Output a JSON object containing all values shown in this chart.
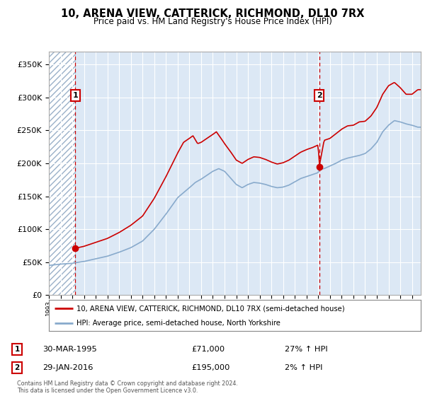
{
  "title": "10, ARENA VIEW, CATTERICK, RICHMOND, DL10 7RX",
  "subtitle": "Price paid vs. HM Land Registry's House Price Index (HPI)",
  "legend_line1": "10, ARENA VIEW, CATTERICK, RICHMOND, DL10 7RX (semi-detached house)",
  "legend_line2": "HPI: Average price, semi-detached house, North Yorkshire",
  "footnote": "Contains HM Land Registry data © Crown copyright and database right 2024.\nThis data is licensed under the Open Government Licence v3.0.",
  "purchase1_date": "30-MAR-1995",
  "purchase1_price": 71000,
  "purchase1_pct": "27% ↑ HPI",
  "purchase2_date": "29-JAN-2016",
  "purchase2_price": 195000,
  "purchase2_pct": "2% ↑ HPI",
  "red_color": "#cc0000",
  "blue_color": "#88aacc",
  "background_color": "#dce8f5",
  "ylim": [
    0,
    370000
  ],
  "yticks": [
    0,
    50000,
    100000,
    150000,
    200000,
    250000,
    300000,
    350000
  ],
  "ytick_labels": [
    "£0",
    "£50K",
    "£100K",
    "£150K",
    "£200K",
    "£250K",
    "£300K",
    "£350K"
  ],
  "purchase1_x": 1995.25,
  "purchase1_y": 71000,
  "purchase2_x": 2016.08,
  "purchase2_y": 195000,
  "xmin": 1993.0,
  "xmax": 2024.75,
  "hatch_xmin": 1993.0,
  "hatch_xmax": 1995.25
}
